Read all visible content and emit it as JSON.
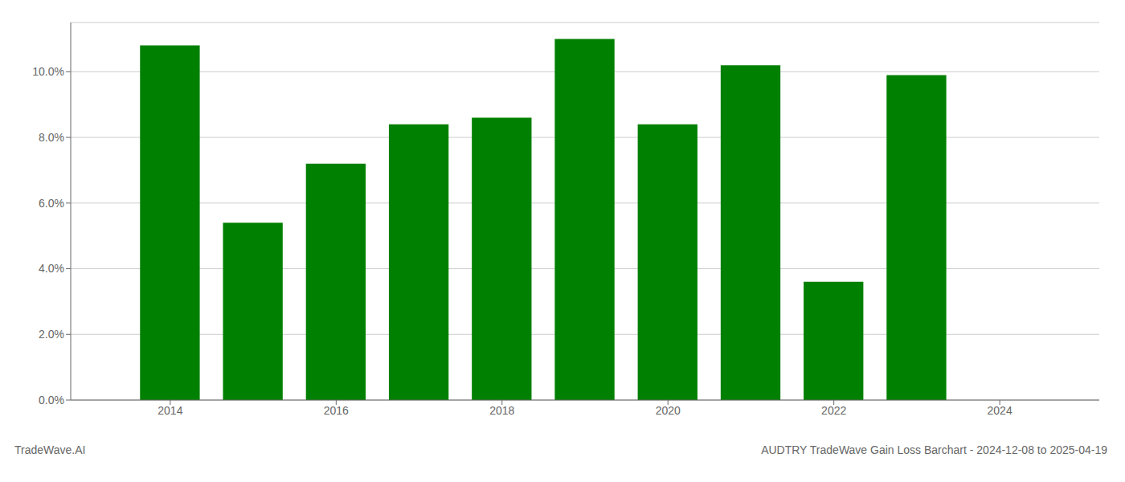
{
  "chart_data": {
    "type": "bar",
    "title": "AUDTRY TradeWave Gain Loss Barchart - 2024-12-08 to 2025-04-19",
    "annotations": [
      "TradeWave.AI"
    ],
    "x": [
      2014,
      2015,
      2016,
      2017,
      2018,
      2019,
      2020,
      2021,
      2022,
      2023
    ],
    "values": [
      0.108,
      0.054,
      0.072,
      0.084,
      0.086,
      0.11,
      0.084,
      0.102,
      0.036,
      0.099
    ],
    "color": "#008000",
    "xlim": [
      2012.8,
      2025.2
    ],
    "xticks": [
      2014,
      2016,
      2018,
      2020,
      2022,
      2024
    ],
    "ylim": [
      0.0,
      0.115
    ],
    "yticks": [
      {
        "value": 0.0,
        "label": "0.0%"
      },
      {
        "value": 0.02,
        "label": "2.0%"
      },
      {
        "value": 0.04,
        "label": "4.0%"
      },
      {
        "value": 0.06,
        "label": "6.0%"
      },
      {
        "value": 0.08,
        "label": "8.0%"
      },
      {
        "value": 0.1,
        "label": "10.0%"
      }
    ],
    "grid": true
  }
}
